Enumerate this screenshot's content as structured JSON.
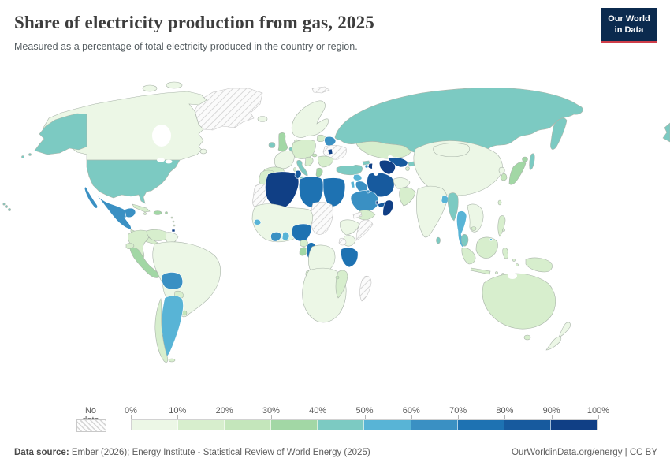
{
  "header": {
    "title": "Share of electricity production from gas, 2025",
    "subtitle": "Measured as a percentage of total electricity produced in the country or region.",
    "logo": {
      "line1": "Our World",
      "line2": "in Data",
      "bg_color": "#0b2a4e",
      "accent_color": "#cf3e4a"
    }
  },
  "legend": {
    "no_data_label": "No data",
    "tick_labels": [
      "0%",
      "10%",
      "20%",
      "30%",
      "40%",
      "50%",
      "60%",
      "70%",
      "80%",
      "90%",
      "100%"
    ],
    "bin_labels": [
      "0-10",
      "10-20",
      "20-30",
      "30-40",
      "40-50",
      "50-60",
      "60-70",
      "70-80",
      "80-90",
      "90-100"
    ],
    "palette": [
      "#ecf7e6",
      "#d7eecd",
      "#c4e6bb",
      "#a2d7a5",
      "#7ccac2",
      "#58b4d6",
      "#3a90c3",
      "#1e72b2",
      "#175a9e",
      "#103f85"
    ],
    "nodata_border": "#c9c9c9"
  },
  "footer": {
    "source_label": "Data source:",
    "source_text": " Ember (2026); Energy Institute - Statistical Review of World Energy (2025)",
    "link": "OurWorldinData.org/energy",
    "separator": " | ",
    "license": "CC BY"
  },
  "chart_data": {
    "type": "heatmap",
    "subtype": "choropleth-world-map",
    "title": "Share of electricity production from gas, 2025",
    "unit": "% of total electricity production",
    "legend_bins": [
      "0-10%",
      "10-20%",
      "20-30%",
      "30-40%",
      "40-50%",
      "50-60%",
      "60-70%",
      "70-80%",
      "80-90%",
      "90-100%",
      "No data"
    ],
    "note": "values are bin indices 0-9 (bin i spans i*10% to (i+1)*10%) read from map colors; 'nodata' = hatched",
    "regions": {
      "greenland": "nodata",
      "canada": 0,
      "alaska": 4,
      "usa": 4,
      "hawaii": 4,
      "mexico": 6,
      "baja": 6,
      "yucatan": 6,
      "central_america": 1,
      "cuba": 1,
      "hispaniola": 3,
      "jamaica": 1,
      "puerto_rico": 3,
      "antilles": 1,
      "trinidad": 9,
      "colombia": 1,
      "venezuela": 1,
      "guyanas": 0,
      "ecuador": 1,
      "peru": 3,
      "brazil": 0,
      "bolivia": 6,
      "paraguay": 1,
      "uruguay": 2,
      "argentina": 5,
      "chile": 1,
      "tierra_del_fuego": 1,
      "iceland": 0,
      "svalbard": "nodata",
      "scandinavia": 0,
      "denmark": 1,
      "uk": 3,
      "ireland": 4,
      "france": 0,
      "iberia": 1,
      "netherlands": 4,
      "central_europe": 1,
      "baltics": 1,
      "belarus": 6,
      "ukraine": "nodata",
      "moldova": 9,
      "romania_bulgaria": 1,
      "hungary": 2,
      "balkans": 1,
      "italy": 4,
      "sicily": 4,
      "sardinia": 1,
      "greece": 3,
      "russia": 4,
      "kamchatka": 4,
      "sakhalin": 4,
      "chukotka": 4,
      "kazakhstan": 1,
      "turkmenistan": 9,
      "uzbekistan": 8,
      "kyrgyzstan": 4,
      "tajikistan": 1,
      "turkey": 4,
      "georgia": 4,
      "armenia": 6,
      "azerbaijan": 9,
      "syria": 5,
      "iraq": 6,
      "jordan_israel": 5,
      "iran": 8,
      "afghanistan": 0,
      "pakistan": 1,
      "saudi_arabia": 6,
      "kuwait": 6,
      "qatar": 9,
      "uae": 8,
      "oman": 9,
      "yemen": 1,
      "morocco": 1,
      "western_sahara_mauritania": "nodata",
      "algeria": 9,
      "tunisia": 8,
      "libya": 7,
      "egypt": 7,
      "chad_sudan": "nodata",
      "sahel_west_africa": 0,
      "senegal": 5,
      "ivory_coast": 6,
      "ghana": 5,
      "nigeria": 7,
      "cameroon": 1,
      "gabon": 3,
      "congo": 7,
      "drc": 0,
      "ethiopia": 0,
      "eritrea_djibouti": "nodata",
      "somalia": "nodata",
      "kenya": 0,
      "uganda": "nodata",
      "tanzania": 7,
      "angola": 1,
      "southern_africa": 0,
      "mozambique": 1,
      "malawi": 2,
      "madagascar": "nodata",
      "china": 0,
      "mongolia": 0,
      "north_korea": 0,
      "south_korea": 2,
      "japan": 3,
      "hokkaido": 3,
      "taiwan": 1,
      "india": 0,
      "sri_lanka": 4,
      "bangladesh": 5,
      "myanmar": 4,
      "thailand": 5,
      "vietnam_laos": 0,
      "cambodia": 1,
      "malay_peninsula": 4,
      "singapore": 9,
      "borneo": 1,
      "brunei": 5,
      "sumatra": 1,
      "java": 1,
      "sulawesi": 1,
      "lesser_sunda": 1,
      "moluccas": 1,
      "new_guinea": 1,
      "philippines": 1,
      "australia": 1,
      "tasmania": 1,
      "new_zealand_north": 0,
      "new_zealand_south": 0
    }
  }
}
